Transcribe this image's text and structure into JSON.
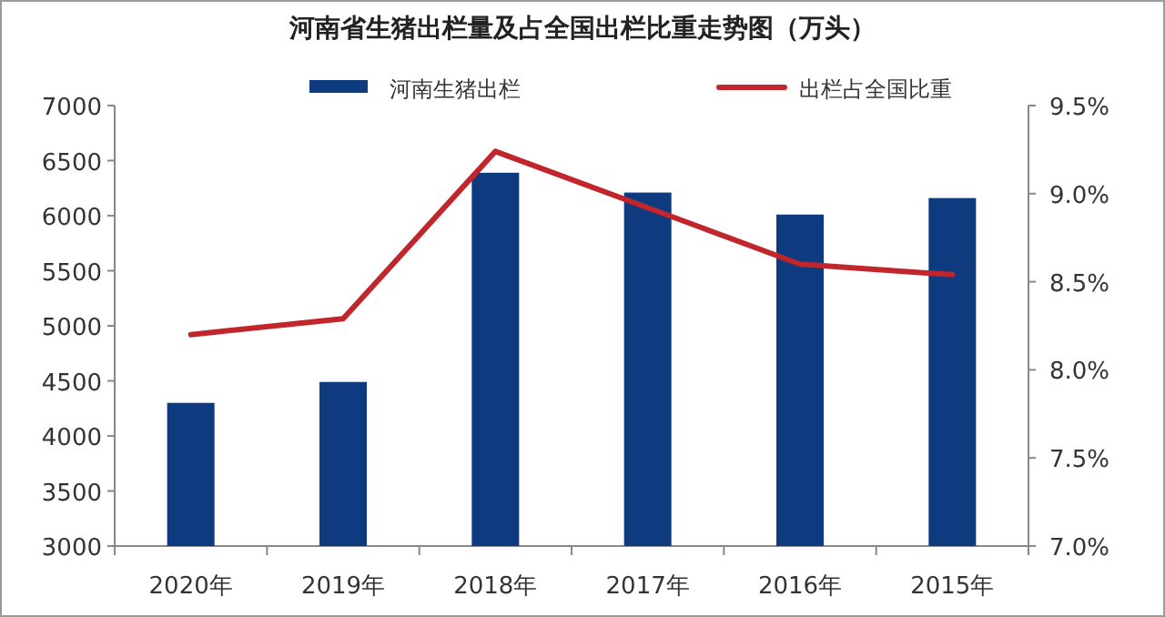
{
  "chart_data": {
    "type": "bar",
    "title": "河南省生猪出栏量及占全国出栏比重走势图（万头）",
    "categories": [
      "2020年",
      "2019年",
      "2018年",
      "2017年",
      "2016年",
      "2015年"
    ],
    "series": [
      {
        "name": "河南生猪出栏",
        "color": "#0e3a80",
        "values": [
          4300,
          4490,
          6390,
          6210,
          6010,
          6160
        ]
      },
      {
        "name": "出栏占全国比重",
        "type": "line",
        "axis": "y2",
        "color": "#c0262b",
        "values": [
          8.2,
          8.29,
          9.24,
          8.92,
          8.6,
          8.54
        ]
      }
    ],
    "ylim": [
      3000,
      7000
    ],
    "yticks": [
      3000,
      3500,
      4000,
      4500,
      5000,
      5500,
      6000,
      6500,
      7000
    ],
    "y2lim": [
      7.0,
      9.5
    ],
    "y2ticks": [
      {
        "value": 7.0,
        "label": "7.0%"
      },
      {
        "value": 7.5,
        "label": "7.5%"
      },
      {
        "value": 8.0,
        "label": "8.0%"
      },
      {
        "value": 8.5,
        "label": "8.5%"
      },
      {
        "value": 9.0,
        "label": "9.0%"
      },
      {
        "value": 9.5,
        "label": "9.5%"
      }
    ],
    "grid": false,
    "legend": "top",
    "marker": "none"
  }
}
